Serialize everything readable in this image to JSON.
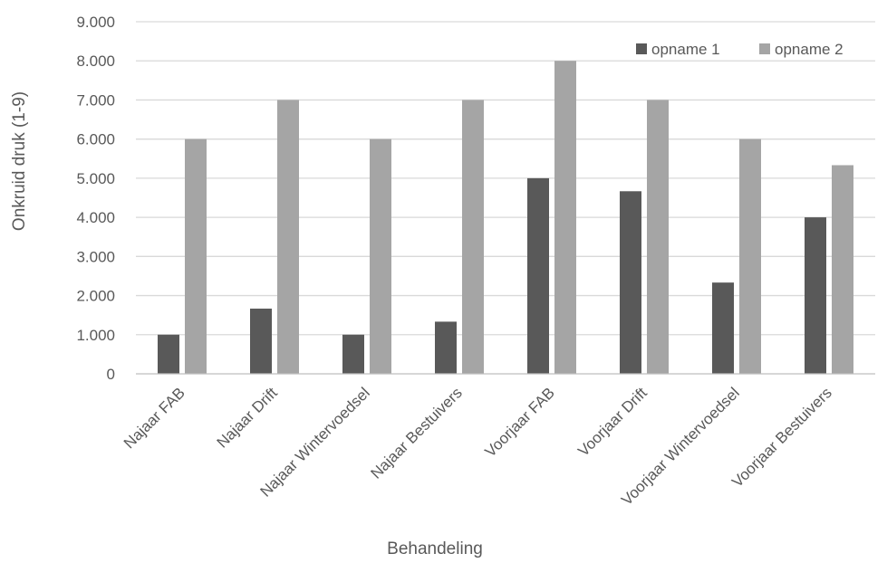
{
  "chart_data": {
    "type": "bar",
    "title": "",
    "xlabel": "Behandeling",
    "ylabel": "Onkruid druk (1-9)",
    "ylim": [
      0,
      9
    ],
    "yticks": [
      0,
      1,
      2,
      3,
      4,
      5,
      6,
      7,
      8,
      9
    ],
    "ytick_labels": [
      "0",
      "1.000",
      "2.000",
      "3.000",
      "4.000",
      "5.000",
      "6.000",
      "7.000",
      "8.000",
      "9.000"
    ],
    "categories": [
      "Najaar FAB",
      "Najaar Drift",
      "Najaar Wintervoedsel",
      "Najaar Bestuivers",
      "Voorjaar FAB",
      "Voorjaar Drift",
      "Voorjaar Wintervoedsel",
      "Voorjaar Bestuivers"
    ],
    "series": [
      {
        "name": "opname 1",
        "color": "#595959",
        "values": [
          1.0,
          1.667,
          1.0,
          1.333,
          5.0,
          4.667,
          2.333,
          4.0
        ]
      },
      {
        "name": "opname 2",
        "color": "#a5a5a5",
        "values": [
          6.0,
          7.0,
          6.0,
          7.0,
          8.0,
          7.0,
          6.0,
          5.333
        ]
      }
    ],
    "grid": true,
    "legend_position": "top-right"
  }
}
